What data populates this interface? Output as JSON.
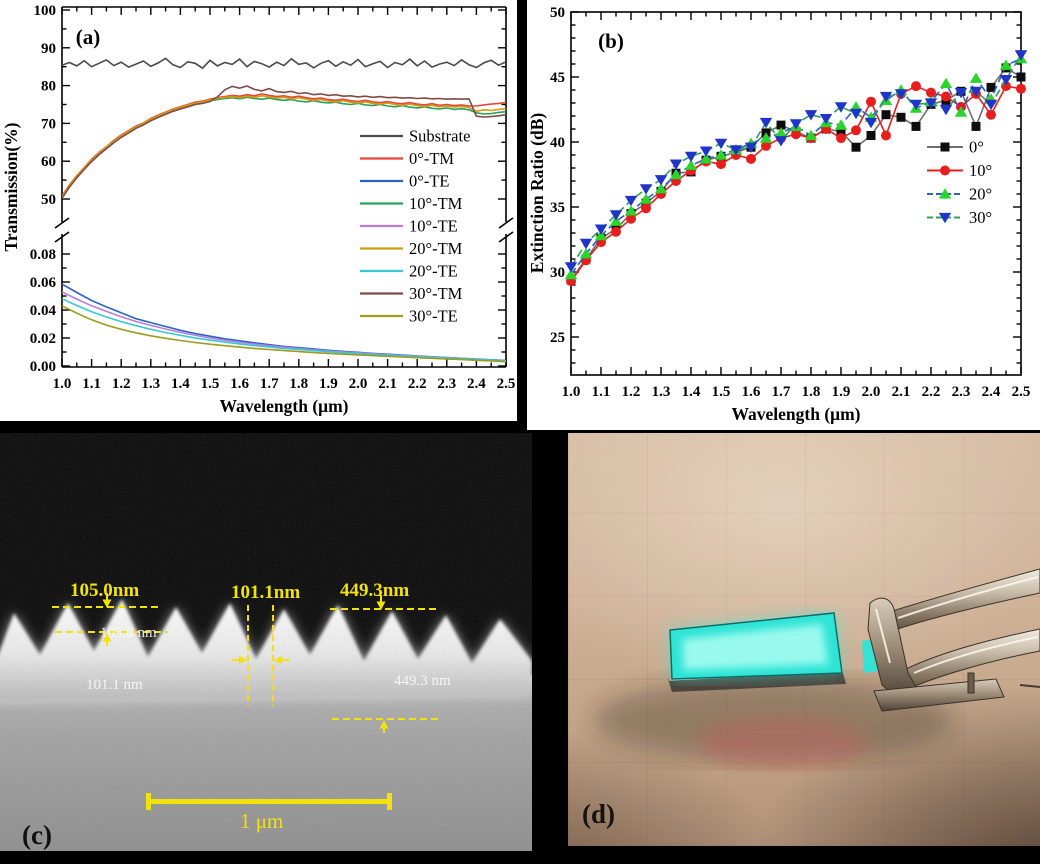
{
  "page": {
    "background": "#000000"
  },
  "chart_data": [
    {
      "type": "line",
      "panel_label": "(a)",
      "xlabel": "Wavelength (μm)",
      "ylabel": "Transmission(%)",
      "x_range": [
        1.0,
        2.5
      ],
      "x_tick_labels": [
        "1.0",
        "1.1",
        "1.2",
        "1.3",
        "1.4",
        "1.5",
        "1.6",
        "1.7",
        "1.8",
        "1.9",
        "2.0",
        "2.1",
        "2.2",
        "2.3",
        "2.4",
        "2.5"
      ],
      "y_axis_break": true,
      "upper_range": [
        45.2,
        100.8
      ],
      "upper_ticks": [
        "50",
        "60",
        "70",
        "80",
        "90",
        "100"
      ],
      "upper_minor_ticks": [
        55,
        65,
        75,
        85,
        95
      ],
      "lower_range": [
        0,
        0.0907
      ],
      "lower_ticks": [
        "0.00",
        "0.02",
        "0.04",
        "0.06",
        "0.08"
      ],
      "lower_minor_ticks": [
        0.01,
        0.03,
        0.05,
        0.07
      ],
      "grid": false,
      "legend_position": "right-center",
      "series": [
        {
          "name": "Substrate",
          "color": "#4a4a4a",
          "section": "upper",
          "x_start": 1.0,
          "x_step": 0.025,
          "values": [
            85.4,
            86.1,
            85.2,
            86.6,
            85.0,
            85.9,
            86.8,
            85.3,
            86.2,
            84.9,
            85.7,
            86.5,
            85.1,
            86.0,
            87.2,
            85.5,
            84.8,
            86.3,
            85.9,
            84.6,
            86.7,
            85.2,
            86.1,
            85.6,
            87.0,
            85.0,
            86.4,
            85.8,
            84.9,
            86.2,
            85.3,
            87.1,
            85.6,
            86.0,
            84.7,
            85.9,
            86.6,
            85.1,
            86.3,
            85.4,
            86.9,
            85.0,
            85.8,
            86.4,
            84.8,
            86.1,
            85.5,
            87.0,
            85.2,
            86.5,
            84.9,
            85.7,
            86.2,
            85.3,
            86.8,
            85.5,
            84.8,
            86.0,
            86.7,
            85.4,
            86.3
          ]
        },
        {
          "name": "0°-TM",
          "color": "#e8453c",
          "section": "upper",
          "x_start": 1.0,
          "x_step": 0.025,
          "values": [
            50.8,
            53.7,
            56.2,
            58.3,
            60.5,
            62.3,
            63.8,
            65.5,
            66.9,
            68.1,
            69.3,
            70.1,
            71.3,
            72.2,
            73.0,
            73.8,
            74.4,
            75.0,
            75.6,
            75.9,
            76.4,
            76.8,
            77.1,
            77.4,
            77.2,
            77.6,
            77.3,
            77.8,
            77.4,
            77.1,
            77.3,
            76.9,
            77.2,
            76.8,
            76.5,
            76.7,
            76.3,
            76.1,
            76.4,
            76.0,
            75.8,
            76.1,
            75.7,
            75.5,
            75.8,
            75.4,
            75.2,
            75.5,
            75.1,
            74.9,
            75.2,
            74.8,
            75.0,
            74.7,
            74.9,
            74.6,
            74.6,
            74.9,
            75.1,
            75.3,
            75.5
          ]
        },
        {
          "name": "0°-TE",
          "color": "#2b62c6",
          "section": "lower",
          "x_start": 1.0,
          "x_step": 0.05,
          "values": [
            0.0585,
            0.0525,
            0.0468,
            0.0422,
            0.038,
            0.0338,
            0.031,
            0.0282,
            0.0255,
            0.0232,
            0.0213,
            0.0194,
            0.018,
            0.0166,
            0.0152,
            0.014,
            0.0131,
            0.0122,
            0.0112,
            0.0104,
            0.0098,
            0.009,
            0.0084,
            0.0078,
            0.0072,
            0.0066,
            0.0061,
            0.0055,
            0.0049,
            0.0044,
            0.004
          ]
        },
        {
          "name": "10°-TM",
          "color": "#2aa05f",
          "section": "upper",
          "x_start": 1.0,
          "x_step": 0.025,
          "values": [
            50.4,
            53.3,
            55.8,
            58.0,
            60.1,
            61.9,
            63.5,
            65.1,
            66.5,
            67.7,
            68.9,
            69.8,
            70.9,
            71.8,
            72.6,
            73.4,
            74.0,
            74.6,
            75.2,
            75.5,
            76.0,
            76.3,
            76.6,
            76.8,
            76.5,
            76.9,
            76.6,
            76.4,
            76.7,
            76.3,
            76.1,
            76.3,
            75.9,
            75.7,
            76.0,
            75.6,
            75.4,
            75.6,
            75.2,
            75.0,
            75.3,
            74.9,
            74.7,
            75.0,
            74.6,
            74.4,
            74.7,
            74.3,
            74.1,
            74.4,
            74.0,
            73.8,
            74.1,
            73.7,
            73.9,
            73.6,
            72.8,
            72.5,
            72.6,
            72.9,
            73.1
          ]
        },
        {
          "name": "10°-TE",
          "color": "#b77fd9",
          "section": "lower",
          "x_start": 1.0,
          "x_step": 0.05,
          "values": [
            0.053,
            0.0478,
            0.043,
            0.039,
            0.0352,
            0.0318,
            0.029,
            0.0264,
            0.024,
            0.022,
            0.02,
            0.0184,
            0.017,
            0.0157,
            0.0145,
            0.0134,
            0.0124,
            0.0116,
            0.0108,
            0.01,
            0.0094,
            0.0087,
            0.0081,
            0.0076,
            0.007,
            0.0065,
            0.006,
            0.0054,
            0.0048,
            0.0043,
            0.0038
          ]
        },
        {
          "name": "20°-TM",
          "color": "#cf9d12",
          "section": "upper",
          "x_start": 1.0,
          "x_step": 0.025,
          "values": [
            50.6,
            53.5,
            56.0,
            58.2,
            60.3,
            62.1,
            63.7,
            65.3,
            66.7,
            67.9,
            69.1,
            70.0,
            71.1,
            72.0,
            72.8,
            73.6,
            74.2,
            74.8,
            75.4,
            75.7,
            76.2,
            76.6,
            76.9,
            77.1,
            76.8,
            77.2,
            76.9,
            77.3,
            77.0,
            76.7,
            76.9,
            76.5,
            76.8,
            76.4,
            76.1,
            76.3,
            75.9,
            75.7,
            76.0,
            75.6,
            75.4,
            75.7,
            75.3,
            75.1,
            75.4,
            75.0,
            74.8,
            75.1,
            74.7,
            74.5,
            74.8,
            74.4,
            74.6,
            74.3,
            74.5,
            74.2,
            73.2,
            73.6,
            73.4,
            73.7,
            73.9
          ]
        },
        {
          "name": "20°-TE",
          "color": "#37c8d2",
          "section": "lower",
          "x_start": 1.0,
          "x_step": 0.05,
          "values": [
            0.048,
            0.0432,
            0.0388,
            0.035,
            0.0317,
            0.0288,
            0.0262,
            0.0239,
            0.0219,
            0.0201,
            0.0185,
            0.0171,
            0.0158,
            0.0146,
            0.0136,
            0.0126,
            0.0118,
            0.011,
            0.0102,
            0.0095,
            0.0089,
            0.0083,
            0.0077,
            0.0072,
            0.0067,
            0.0062,
            0.0057,
            0.0052,
            0.0047,
            0.0042,
            0.0036
          ]
        },
        {
          "name": "30°-TM",
          "color": "#7e4b47",
          "section": "upper",
          "x_start": 1.0,
          "x_step": 0.025,
          "values": [
            50.2,
            53.1,
            55.6,
            57.8,
            59.9,
            61.7,
            63.3,
            64.9,
            66.3,
            67.5,
            68.7,
            69.6,
            70.7,
            71.6,
            72.4,
            73.2,
            73.8,
            74.4,
            75.0,
            75.3,
            75.8,
            77.0,
            78.9,
            79.8,
            79.3,
            79.9,
            79.0,
            78.6,
            79.2,
            78.4,
            78.2,
            78.5,
            77.9,
            78.1,
            77.6,
            77.8,
            77.4,
            77.6,
            77.2,
            77.3,
            77.0,
            77.2,
            76.9,
            77.1,
            76.8,
            76.9,
            76.7,
            76.8,
            76.6,
            76.7,
            76.5,
            76.6,
            76.4,
            76.5,
            76.4,
            76.5,
            71.9,
            71.7,
            71.8,
            72.0,
            72.3
          ]
        },
        {
          "name": "30°-TE",
          "color": "#9c9c1e",
          "section": "lower",
          "x_start": 1.0,
          "x_step": 0.05,
          "values": [
            0.043,
            0.0378,
            0.033,
            0.0292,
            0.0262,
            0.0237,
            0.0216,
            0.0198,
            0.0182,
            0.0168,
            0.0156,
            0.0145,
            0.0135,
            0.0126,
            0.0118,
            0.011,
            0.0103,
            0.0096,
            0.009,
            0.0084,
            0.0079,
            0.0074,
            0.0069,
            0.0064,
            0.0059,
            0.0055,
            0.005,
            0.0046,
            0.0041,
            0.0036,
            0.0031
          ]
        }
      ]
    },
    {
      "type": "scatter-line",
      "panel_label": "(b)",
      "xlabel": "Wavelength (μm)",
      "ylabel": "Extinction Ratio (dB)",
      "x_range": [
        1.0,
        2.5
      ],
      "x_tick_labels": [
        "1.0",
        "1.1",
        "1.2",
        "1.3",
        "1.4",
        "1.5",
        "1.6",
        "1.7",
        "1.8",
        "1.9",
        "2.0",
        "2.1",
        "2.2",
        "2.3",
        "2.4",
        "2.5"
      ],
      "ylim": [
        22,
        50
      ],
      "y_ticks": [
        "25",
        "30",
        "35",
        "40",
        "45",
        "50"
      ],
      "grid": false,
      "legend_position": "right-center",
      "series": [
        {
          "name": "0°",
          "marker": "square",
          "marker_color": "#0d0d0d",
          "line_color": "#6e6e6e",
          "line_dash": "",
          "x_start": 1.0,
          "x_step": 0.05,
          "values": [
            29.4,
            31.0,
            32.6,
            33.3,
            34.5,
            35.3,
            36.2,
            37.6,
            37.7,
            38.6,
            38.9,
            39.2,
            39.6,
            40.7,
            41.3,
            40.8,
            40.3,
            41.0,
            40.8,
            39.6,
            40.5,
            42.1,
            41.9,
            41.2,
            42.9,
            43.2,
            43.9,
            41.2,
            44.2,
            45.7,
            45.0
          ]
        },
        {
          "name": "10°",
          "marker": "circle",
          "marker_color": "#e61e1e",
          "line_color": "#e61e1e",
          "line_dash": "",
          "x_start": 1.0,
          "x_step": 0.05,
          "values": [
            29.3,
            30.9,
            32.3,
            33.1,
            34.1,
            34.9,
            36.0,
            37.0,
            37.8,
            38.5,
            38.3,
            39.0,
            38.7,
            39.7,
            40.3,
            40.6,
            40.3,
            41.0,
            40.3,
            40.9,
            43.1,
            40.5,
            43.7,
            44.3,
            43.8,
            43.5,
            42.7,
            43.7,
            42.1,
            44.3,
            44.1
          ]
        },
        {
          "name": "20°",
          "marker": "triangle-up",
          "marker_color": "#2bd42b",
          "line_color": "#2763c9",
          "line_dash": "8,4",
          "x_start": 1.0,
          "x_step": 0.05,
          "values": [
            29.8,
            31.4,
            32.8,
            33.9,
            34.7,
            35.6,
            36.4,
            37.5,
            38.2,
            38.7,
            39.0,
            39.4,
            39.9,
            40.3,
            40.7,
            41.2,
            40.5,
            41.5,
            41.3,
            42.7,
            41.9,
            43.2,
            44.0,
            42.6,
            43.1,
            44.5,
            42.3,
            44.9,
            43.3,
            45.9,
            46.4
          ]
        },
        {
          "name": "30°",
          "marker": "triangle-down",
          "marker_color": "#1f35c8",
          "line_color": "#2f9b62",
          "line_dash": "8,4",
          "x_start": 1.0,
          "x_step": 0.05,
          "values": [
            30.4,
            32.2,
            33.3,
            34.4,
            35.5,
            36.4,
            37.1,
            38.3,
            38.9,
            39.3,
            39.9,
            39.4,
            39.6,
            41.5,
            40.1,
            41.4,
            42.1,
            41.8,
            42.7,
            42.2,
            41.5,
            43.5,
            43.7,
            42.9,
            43.0,
            42.5,
            43.8,
            43.9,
            42.9,
            44.8,
            46.7
          ]
        }
      ]
    }
  ],
  "sem_panel": {
    "panel_label": "(c)",
    "scale_bar_label": "1 μm",
    "annotation_color": "#f2e20a",
    "measurements": {
      "pitch_left": "105.0nm",
      "width_mid": "101.1nm",
      "depth_right": "449.3nm",
      "white_left": "105.0 nm",
      "white_mid": "101.1 nm",
      "white_right": "449.3 nm"
    }
  },
  "photo_panel": {
    "panel_label": "(d)",
    "glow_color": "#2ee4d6"
  }
}
